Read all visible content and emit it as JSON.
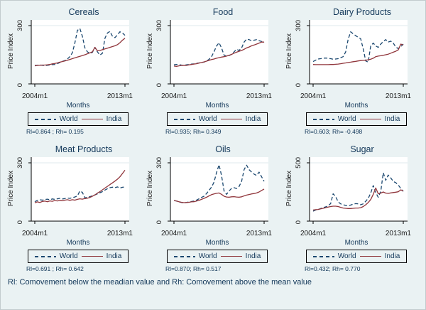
{
  "figure": {
    "footer": "Rl: Comovement below the meadian value and Rh: Comovement above the mean value",
    "colors": {
      "background": "#eaf2f3",
      "plot_bg": "#ffffff",
      "world": "#1a476f",
      "india": "#90353b",
      "grid": "#dfeaec",
      "axis": "#000000",
      "title_text": "#13385a"
    }
  },
  "shared": {
    "ylabel": "Price Index",
    "xlabel": "Months",
    "x_ticks": [
      "2004m1",
      "2013m1"
    ],
    "legend": {
      "world": "World",
      "india": "India"
    },
    "x_months": [
      0,
      3,
      6,
      9,
      12,
      15,
      18,
      21,
      24,
      27,
      30,
      33,
      36,
      39,
      42,
      45,
      48,
      51,
      54,
      57,
      60,
      63,
      66,
      69,
      72,
      75,
      78,
      81,
      84,
      87,
      90,
      93,
      96,
      99,
      102,
      105,
      108
    ]
  },
  "chart_data": [
    {
      "type": "line",
      "title": "Cereals",
      "ylim": [
        0,
        300
      ],
      "y_ticks": [
        "0",
        "300"
      ],
      "stats": "Rl=0.864 ; Rh= 0.195",
      "series": [
        {
          "name": "World",
          "style": "dashed",
          "values": [
            95,
            96,
            98,
            96,
            94,
            96,
            97,
            99,
            100,
            104,
            110,
            116,
            120,
            128,
            140,
            160,
            210,
            275,
            285,
            245,
            185,
            165,
            158,
            162,
            188,
            165,
            148,
            158,
            235,
            262,
            270,
            245,
            238,
            252,
            268,
            262,
            250
          ]
        },
        {
          "name": "India",
          "style": "solid",
          "values": [
            93,
            95,
            96,
            97,
            97,
            98,
            100,
            103,
            105,
            108,
            112,
            115,
            118,
            122,
            126,
            130,
            134,
            138,
            142,
            146,
            150,
            155,
            160,
            165,
            188,
            170,
            172,
            176,
            180,
            184,
            188,
            192,
            196,
            202,
            212,
            225,
            235
          ]
        }
      ]
    },
    {
      "type": "line",
      "title": "Food",
      "ylim": [
        0,
        300
      ],
      "y_ticks": [
        "0",
        "300"
      ],
      "stats": "Rl=0.935; Rh= 0.349",
      "series": [
        {
          "name": "World",
          "style": "dashed",
          "values": [
            98,
            100,
            99,
            97,
            96,
            98,
            100,
            102,
            103,
            106,
            108,
            110,
            112,
            118,
            126,
            140,
            165,
            195,
            212,
            185,
            148,
            142,
            146,
            152,
            165,
            178,
            172,
            185,
            215,
            230,
            228,
            222,
            225,
            228,
            222,
            218,
            213
          ]
        },
        {
          "name": "India",
          "style": "solid",
          "values": [
            92,
            90,
            93,
            95,
            96,
            95,
            98,
            100,
            102,
            104,
            107,
            110,
            113,
            117,
            121,
            125,
            128,
            132,
            135,
            138,
            140,
            143,
            147,
            152,
            158,
            163,
            168,
            172,
            178,
            185,
            190,
            196,
            200,
            205,
            210,
            215,
            215
          ]
        }
      ]
    },
    {
      "type": "line",
      "title": "Dairy Products",
      "ylim": [
        0,
        300
      ],
      "y_ticks": [
        "0",
        "300"
      ],
      "stats": "Rl=0.603; Rh= -0.498",
      "series": [
        {
          "name": "World",
          "style": "dashed",
          "values": [
            115,
            122,
            128,
            130,
            132,
            133,
            132,
            130,
            127,
            128,
            130,
            135,
            140,
            165,
            230,
            268,
            258,
            248,
            240,
            232,
            180,
            118,
            112,
            195,
            210,
            195,
            188,
            205,
            218,
            228,
            215,
            220,
            210,
            190,
            182,
            192,
            205
          ]
        },
        {
          "name": "India",
          "style": "solid",
          "values": [
            100,
            99,
            99,
            99,
            99,
            99,
            99,
            100,
            100,
            101,
            102,
            104,
            106,
            108,
            110,
            112,
            114,
            116,
            118,
            120,
            121,
            122,
            124,
            127,
            132,
            140,
            143,
            145,
            147,
            150,
            153,
            158,
            163,
            168,
            175,
            205,
            200
          ]
        }
      ]
    },
    {
      "type": "line",
      "title": "Meat Products",
      "ylim": [
        0,
        300
      ],
      "y_ticks": [
        "0",
        "300"
      ],
      "stats": "Rl=0.691 ; Rh= 0.642",
      "series": [
        {
          "name": "World",
          "style": "dashed",
          "values": [
            100,
            107,
            110,
            108,
            111,
            113,
            110,
            114,
            112,
            115,
            117,
            114,
            116,
            119,
            117,
            121,
            124,
            130,
            155,
            148,
            120,
            123,
            126,
            130,
            135,
            140,
            146,
            152,
            160,
            167,
            172,
            175,
            172,
            176,
            170,
            174,
            176
          ]
        },
        {
          "name": "India",
          "style": "solid",
          "values": [
            94,
            99,
            96,
            101,
            103,
            100,
            104,
            102,
            106,
            104,
            107,
            105,
            108,
            110,
            107,
            110,
            108,
            112,
            115,
            113,
            116,
            118,
            122,
            128,
            135,
            144,
            152,
            161,
            170,
            179,
            188,
            197,
            206,
            216,
            228,
            245,
            262
          ]
        }
      ]
    },
    {
      "type": "line",
      "title": "Oils",
      "ylim": [
        0,
        300
      ],
      "y_ticks": [
        "0",
        "300"
      ],
      "stats": "Rl=0.870; Rh= 0.517",
      "series": [
        {
          "name": "World",
          "style": "dashed",
          "values": [
            106,
            103,
            99,
            96,
            94,
            96,
            99,
            101,
            103,
            108,
            115,
            122,
            128,
            142,
            158,
            175,
            200,
            250,
            290,
            235,
            155,
            138,
            155,
            168,
            172,
            168,
            178,
            205,
            265,
            288,
            265,
            252,
            242,
            235,
            252,
            228,
            205
          ]
        },
        {
          "name": "India",
          "style": "solid",
          "values": [
            106,
            104,
            100,
            97,
            95,
            96,
            97,
            99,
            100,
            103,
            107,
            112,
            117,
            123,
            130,
            136,
            140,
            143,
            145,
            138,
            128,
            124,
            123,
            125,
            126,
            124,
            123,
            125,
            130,
            134,
            137,
            140,
            142,
            145,
            150,
            158,
            165
          ]
        }
      ]
    },
    {
      "type": "line",
      "title": "Sugar",
      "ylim": [
        0,
        500
      ],
      "y_ticks": [
        "0",
        "500"
      ],
      "stats": "Rl=0.432; Rh= 0.770",
      "series": [
        {
          "name": "World",
          "style": "dashed",
          "values": [
            85,
            95,
            100,
            108,
            115,
            122,
            132,
            150,
            235,
            210,
            165,
            148,
            140,
            135,
            132,
            138,
            145,
            150,
            148,
            140,
            148,
            170,
            195,
            240,
            305,
            245,
            205,
            255,
            415,
            350,
            395,
            370,
            340,
            330,
            310,
            280,
            255
          ]
        },
        {
          "name": "India",
          "style": "solid",
          "values": [
            95,
            98,
            100,
            105,
            110,
            115,
            120,
            125,
            128,
            128,
            125,
            118,
            112,
            110,
            108,
            108,
            110,
            112,
            112,
            115,
            125,
            140,
            160,
            185,
            230,
            285,
            235,
            240,
            250,
            240,
            238,
            242,
            245,
            248,
            252,
            268,
            258
          ]
        }
      ]
    }
  ]
}
